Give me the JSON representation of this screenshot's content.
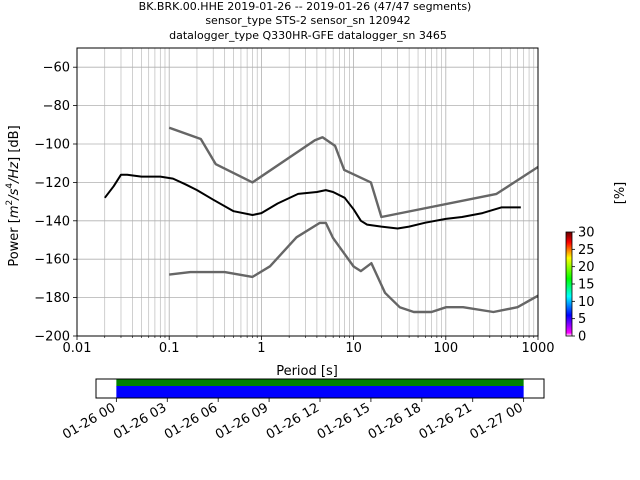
{
  "chart_data": [
    {
      "type": "heatmap",
      "title": [
        "BK.BRK.00.HHE   2019-01-26 -- 2019-01-26  (47/47 segments)",
        "sensor_type STS-2 sensor_sn 120942",
        "datalogger_type Q330HR-GFE datalogger_sn 3465"
      ],
      "xlabel": "Period [s]",
      "ylabel_parts": {
        "pre": "Power [",
        "m": "m",
        "two": "2",
        "s": "/s",
        "four": "4",
        "hz": "/Hz",
        "post": "] [dB]"
      },
      "x_scale": "log",
      "xlim": [
        0.01,
        1000
      ],
      "ylim": [
        -200,
        -50
      ],
      "x_ticks": [
        {
          "v": 0.01,
          "label": "0.01"
        },
        {
          "v": 0.1,
          "label": "0.1"
        },
        {
          "v": 1,
          "label": "1"
        },
        {
          "v": 10,
          "label": "10"
        },
        {
          "v": 100,
          "label": "100"
        },
        {
          "v": 1000,
          "label": "1000"
        }
      ],
      "y_ticks": [
        -60,
        -80,
        -100,
        -120,
        -140,
        -160,
        -180,
        -200
      ],
      "grid": true,
      "colorbar": {
        "label": "[%]",
        "range": [
          0,
          30
        ],
        "ticks": [
          0,
          5,
          10,
          15,
          20,
          25,
          30
        ]
      },
      "noise_model_high": {
        "period": [
          0.1,
          0.22,
          0.32,
          0.8,
          3.8,
          4.6,
          6.3,
          7.9,
          15.4,
          20,
          354.8,
          1000
        ],
        "power": [
          -91.5,
          -97.4,
          -110.5,
          -120,
          -98,
          -96.5,
          -101,
          -113.5,
          -120,
          -138,
          -126,
          -112
        ]
      },
      "noise_model_low": {
        "period": [
          0.1,
          0.17,
          0.4,
          0.8,
          1.24,
          2.4,
          4.3,
          5,
          6,
          10,
          12,
          15.6,
          21.9,
          31.6,
          45,
          70,
          101,
          154,
          328,
          600,
          1000
        ],
        "power": [
          -168,
          -166.7,
          -166.7,
          -169.2,
          -163.7,
          -148.6,
          -141.1,
          -141.1,
          -149,
          -163.8,
          -166.2,
          -162.1,
          -177.5,
          -185,
          -187.5,
          -187.5,
          -185,
          -185,
          -187.5,
          -185,
          -179
        ]
      },
      "mean_curve": {
        "period": [
          0.02,
          0.025,
          0.03,
          0.035,
          0.05,
          0.08,
          0.11,
          0.15,
          0.2,
          0.3,
          0.5,
          0.8,
          1.0,
          1.5,
          2.5,
          4.0,
          5.0,
          6.0,
          8.0,
          10,
          12,
          14,
          20,
          30,
          40,
          60,
          100,
          150,
          250,
          400,
          650
        ],
        "power": [
          -128,
          -122,
          -116,
          -116,
          -117,
          -117,
          -118,
          -121,
          -124,
          -129,
          -135,
          -137,
          -136,
          -131,
          -126,
          -125,
          -124,
          -125,
          -128,
          -134,
          -140,
          -142,
          -143,
          -144,
          -143,
          -141,
          -139,
          -138,
          -136,
          -133,
          -133
        ]
      }
    },
    {
      "type": "bar",
      "title": "",
      "x_ticks": [
        "01-26 00",
        "01-26 03",
        "01-26 06",
        "01-26 09",
        "01-26 12",
        "01-26 15",
        "01-26 18",
        "01-26 21",
        "01-27 00"
      ],
      "xlim_hours": [
        -1.2,
        25.2
      ],
      "series": [
        {
          "start_hour": 0,
          "end_hour": 24,
          "color": "#008000"
        },
        {
          "start_hour": 0,
          "end_hour": 24,
          "color": "#0000ff"
        }
      ]
    }
  ]
}
